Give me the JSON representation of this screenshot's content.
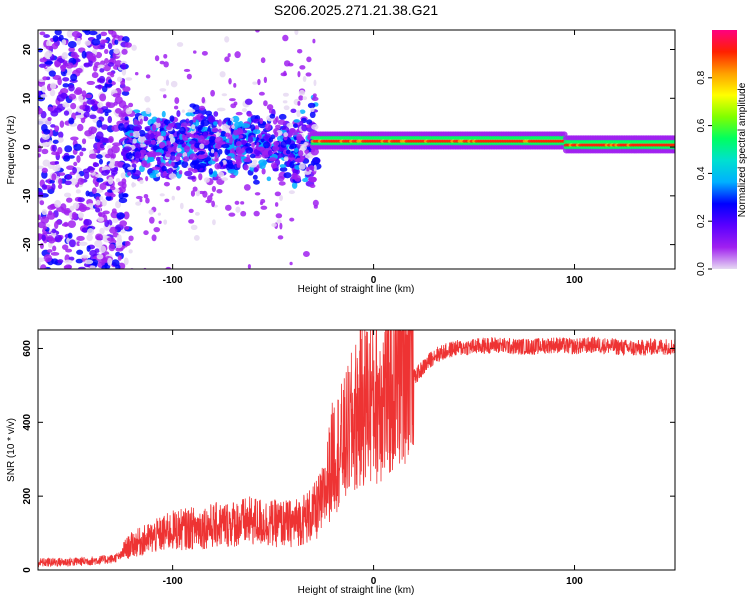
{
  "title": "S206.2025.271.21.38.G21",
  "colormap": [
    "#e6d9f2",
    "#a020f0",
    "#5a00ff",
    "#0000ff",
    "#00b0ff",
    "#00e0d0",
    "#00ff60",
    "#80ff00",
    "#ffff00",
    "#ffa000",
    "#ff2000",
    "#ff0080"
  ],
  "chart_data": [
    {
      "type": "heatmap",
      "title": "",
      "xlabel": "Height of straight line (km)",
      "ylabel": "Frequency (Hz)",
      "xlim": [
        -167,
        150
      ],
      "ylim": [
        -25,
        24
      ],
      "xticks": [
        -100,
        0,
        100
      ],
      "xtick_labels": [
        "-100",
        "0",
        "100"
      ],
      "yticks": [
        -20,
        -10,
        0,
        10,
        20
      ],
      "ytick_labels": [
        "-20",
        "-10",
        "0",
        "10",
        "20"
      ],
      "description_regions": [
        {
          "x_range": [
            -167,
            -123
          ],
          "freq_range": [
            -25,
            24
          ],
          "amplitude": 0.15,
          "pattern": "broad scatter"
        },
        {
          "x_range": [
            -123,
            -30
          ],
          "freq_range": [
            -6,
            7
          ],
          "amplitude": 0.3,
          "pattern": "noisy band"
        },
        {
          "x_range": [
            -30,
            150
          ],
          "freq_center": 1,
          "amplitude": 0.9,
          "pattern": "narrow tone"
        }
      ],
      "colorbar": {
        "label": "Normalized spectral amplitude",
        "range": [
          0,
          1
        ],
        "ticks": [
          0.0,
          0.2,
          0.4,
          0.6,
          0.8
        ],
        "tick_labels": [
          "0.0",
          "0.2",
          "0.4",
          "0.6",
          "0.8"
        ]
      }
    },
    {
      "type": "line",
      "title": "",
      "xlabel": "Height of straight line (km)",
      "ylabel": "SNR (10 * v/v)",
      "xlim": [
        -167,
        150
      ],
      "ylim": [
        0,
        650
      ],
      "xticks": [
        -100,
        0,
        100
      ],
      "xtick_labels": [
        "-100",
        "0",
        "100"
      ],
      "yticks": [
        0,
        200,
        400,
        600
      ],
      "ytick_labels": [
        "0",
        "200",
        "400",
        "600"
      ],
      "color": "#ee3333",
      "series": [
        {
          "name": "SNR",
          "x": [
            -167,
            -150,
            -140,
            -130,
            -125,
            -120,
            -110,
            -100,
            -90,
            -80,
            -70,
            -60,
            -50,
            -40,
            -30,
            -25,
            -20,
            -15,
            -10,
            -5,
            0,
            5,
            10,
            15,
            20,
            25,
            30,
            40,
            50,
            60,
            70,
            80,
            90,
            100,
            110,
            120,
            130,
            140,
            150
          ],
          "y": [
            20,
            22,
            25,
            30,
            40,
            55,
            70,
            85,
            90,
            95,
            100,
            105,
            100,
            100,
            120,
            150,
            250,
            270,
            320,
            360,
            370,
            380,
            400,
            460,
            520,
            550,
            580,
            600,
            605,
            610,
            605,
            605,
            610,
            605,
            610,
            605,
            600,
            605,
            605
          ]
        }
      ]
    }
  ]
}
